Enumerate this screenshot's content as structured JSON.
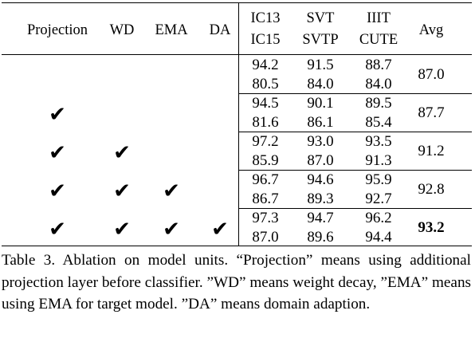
{
  "table": {
    "headers": {
      "projection": "Projection",
      "wd": "WD",
      "ema": "EMA",
      "da": "DA",
      "col1": [
        "IC13",
        "IC15"
      ],
      "col2": [
        "SVT",
        "SVTP"
      ],
      "col3": [
        "IIIT",
        "CUTE"
      ],
      "avg": "Avg"
    },
    "rows": [
      {
        "checks": [
          false,
          false,
          false,
          false
        ],
        "top": [
          "94.2",
          "91.5",
          "88.7"
        ],
        "bottom": [
          "80.5",
          "84.0",
          "84.0"
        ],
        "avg": "87.0",
        "avg_bold": false
      },
      {
        "checks": [
          true,
          false,
          false,
          false
        ],
        "top": [
          "94.5",
          "90.1",
          "89.5"
        ],
        "bottom": [
          "81.6",
          "86.1",
          "85.4"
        ],
        "avg": "87.7",
        "avg_bold": false
      },
      {
        "checks": [
          true,
          true,
          false,
          false
        ],
        "top": [
          "97.2",
          "93.0",
          "93.5"
        ],
        "bottom": [
          "85.9",
          "87.0",
          "91.3"
        ],
        "avg": "91.2",
        "avg_bold": false
      },
      {
        "checks": [
          true,
          true,
          true,
          false
        ],
        "top": [
          "96.7",
          "94.6",
          "95.9"
        ],
        "bottom": [
          "86.7",
          "89.3",
          "92.7"
        ],
        "avg": "92.8",
        "avg_bold": false
      },
      {
        "checks": [
          true,
          true,
          true,
          true
        ],
        "top": [
          "97.3",
          "94.7",
          "96.2"
        ],
        "bottom": [
          "87.0",
          "89.6",
          "94.4"
        ],
        "avg": "93.2",
        "avg_bold": true
      }
    ],
    "check_symbol": "✔"
  },
  "caption": "Table 3. Ablation on model units. “Projection” means using additional projection layer before classifier. ”WD” means weight decay, ”EMA” means using EMA for target model. ”DA” means domain adaption."
}
